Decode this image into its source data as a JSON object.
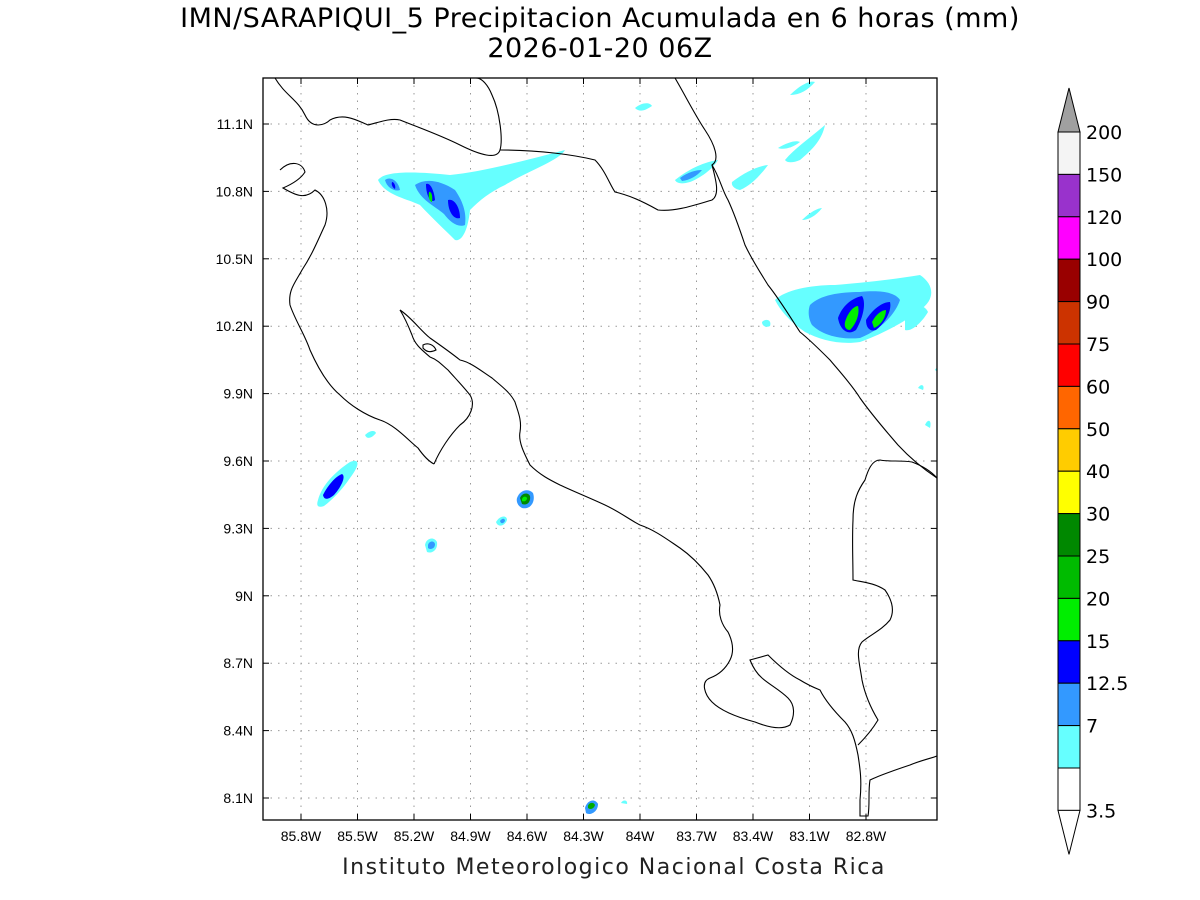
{
  "title": {
    "line1": "IMN/SARAPIQUI_5 Precipitacion Acumulada en 6 horas (mm)",
    "line2": "2026-01-20 06Z"
  },
  "footer": "Instituto Meteorologico Nacional Costa Rica",
  "map": {
    "lon_range": [
      -86.0,
      -83.0
    ],
    "lat_range": [
      8.0,
      11.25
    ],
    "lon_ticks": [
      "85.8W",
      "85.5W",
      "85.2W",
      "84.9W",
      "84.6W",
      "84.3W",
      "84W",
      "83.7W",
      "83.4W",
      "83.1W",
      "82.8W"
    ],
    "lat_ticks": [
      "11.1N",
      "10.8N",
      "10.5N",
      "10.2N",
      "9.9N",
      "9.6N",
      "9.3N",
      "9N",
      "8.7N",
      "8.4N",
      "8.1N"
    ],
    "grid": true
  },
  "legend": {
    "max_label": "200",
    "levels": [
      {
        "label": "200",
        "color": "#f4f4f4"
      },
      {
        "label": "150",
        "color": "#9932cc"
      },
      {
        "label": "120",
        "color": "#ff00ff"
      },
      {
        "label": "100",
        "color": "#990000"
      },
      {
        "label": "90",
        "color": "#cc3300"
      },
      {
        "label": "75",
        "color": "#ff0000"
      },
      {
        "label": "60",
        "color": "#ff6600"
      },
      {
        "label": "50",
        "color": "#ffcc00"
      },
      {
        "label": "40",
        "color": "#ffff00"
      },
      {
        "label": "30",
        "color": "#008800"
      },
      {
        "label": "25",
        "color": "#00bb00"
      },
      {
        "label": "20",
        "color": "#00ee00"
      },
      {
        "label": "15",
        "color": "#0000ff"
      },
      {
        "label": "12.5",
        "color": "#3399ff"
      },
      {
        "label": "7",
        "color": "#66ffff"
      },
      {
        "label": "3.5",
        "color": "#ffffff"
      }
    ],
    "top_arrow_color": "#a0a0a0",
    "bottom_arrow_color": "#ffffff"
  }
}
